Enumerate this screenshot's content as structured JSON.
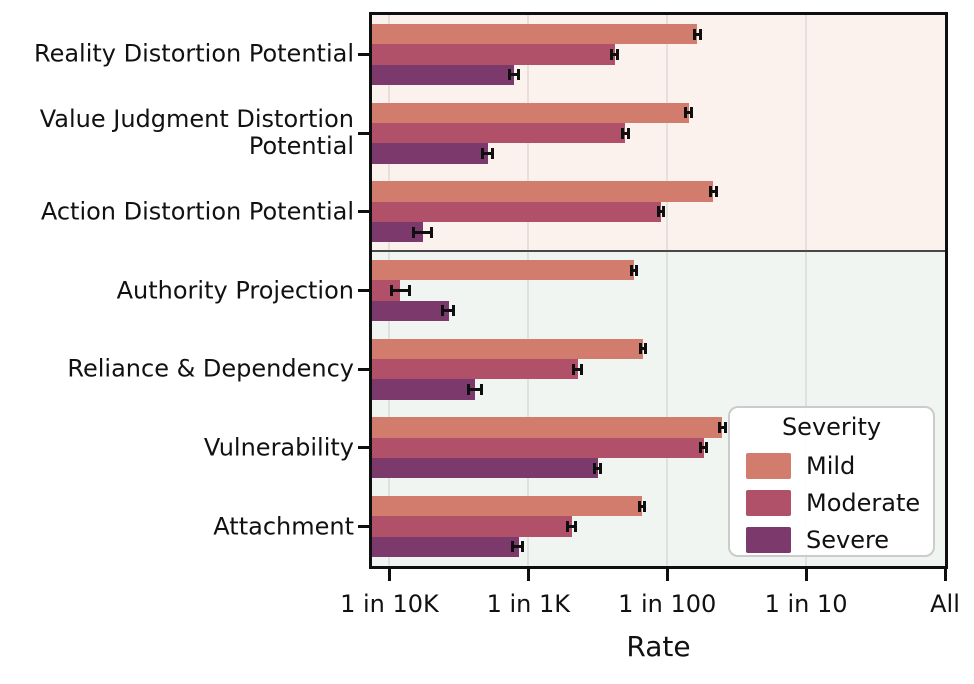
{
  "chart_data": {
    "type": "bar",
    "orientation": "horizontal",
    "xscale": "log",
    "title": "",
    "xlabel": "Rate",
    "ylabel": "",
    "grid": true,
    "xlim": [
      7.49e-05,
      1.0
    ],
    "x_ticks": [
      {
        "label": "1 in 10K",
        "value": 0.0001
      },
      {
        "label": "1 in 1K",
        "value": 0.001
      },
      {
        "label": "1 in 100",
        "value": 0.01
      },
      {
        "label": "1 in 10",
        "value": 0.1
      },
      {
        "label": "All",
        "value": 1.0
      }
    ],
    "categories": [
      "Reality Distortion Potential",
      "Value Judgment Distortion Potential",
      "Action Distortion Potential",
      "Authority Projection",
      "Reliance & Dependency",
      "Vulnerability",
      "Attachment"
    ],
    "series": [
      {
        "name": "Mild",
        "color": "#d17c6d",
        "values": [
          0.0165,
          0.0143,
          0.0215,
          0.0058,
          0.0067,
          0.025,
          0.0066
        ],
        "err_lo": [
          0.0158,
          0.0136,
          0.0205,
          0.0055,
          0.0064,
          0.0239,
          0.0063
        ],
        "err_hi": [
          0.0174,
          0.015,
          0.0227,
          0.006,
          0.007,
          0.0264,
          0.0069
        ]
      },
      {
        "name": "Moderate",
        "color": "#b05069",
        "values": [
          0.0042,
          0.005,
          0.009,
          0.00012,
          0.00228,
          0.0183,
          0.00207
        ],
        "err_lo": [
          0.004,
          0.0048,
          0.0086,
          0.000104,
          0.0021,
          0.0174,
          0.0019
        ],
        "err_hi": [
          0.0044,
          0.0053,
          0.0094,
          0.00014,
          0.0024,
          0.0193,
          0.0022
        ]
      },
      {
        "name": "Severe",
        "color": "#7b3a6b",
        "values": [
          0.00079,
          0.00051,
          0.000175,
          0.00027,
          0.00041,
          0.00318,
          0.00085
        ],
        "err_lo": [
          0.00073,
          0.00047,
          0.00015,
          0.00024,
          0.00037,
          0.003,
          0.00077
        ],
        "err_hi": [
          0.00085,
          0.00055,
          0.0002,
          0.00029,
          0.00046,
          0.0033,
          0.00091
        ]
      }
    ],
    "legend": {
      "title": "Severity",
      "position": "lower-right-inside"
    },
    "category_bands": [
      {
        "category_indices": [
          0,
          1,
          2
        ],
        "background": "#fbf1ed"
      },
      {
        "category_indices": [
          3,
          4,
          5,
          6
        ],
        "background": "#f0f5f1"
      }
    ]
  },
  "style": {
    "spine_color": "#0f0f0f",
    "divider_color": "#474747",
    "grid_color": "rgba(110,110,110,0.14)",
    "text_color": "#111111",
    "error_bar_color": "#0f0f0f",
    "legend_border": "#cbcbcb",
    "legend_background": "rgba(255,255,255,0.93)",
    "band_colors": [
      "#fbf1ed",
      "#f0f5f1"
    ]
  }
}
